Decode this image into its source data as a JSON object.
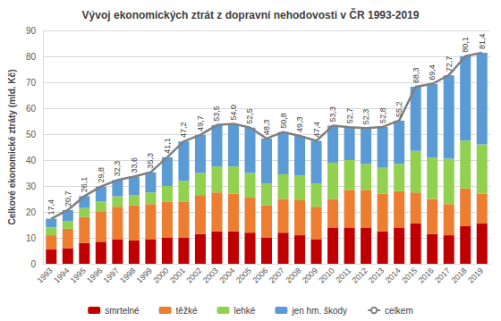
{
  "chart_data": {
    "type": "bar",
    "title": "Vývoj ekonomických ztrát z dopravní nehodovosti v ČR 1993-2019",
    "y_label": "Celkové ekonomické ztráty (mld. Kč)",
    "categories": [
      "1993",
      "1994",
      "1995",
      "1996",
      "1997",
      "1998",
      "1999",
      "2000",
      "2001",
      "2002",
      "2003",
      "2004",
      "2005",
      "2006",
      "2007",
      "2008",
      "2009",
      "2010",
      "2011",
      "2012",
      "2013",
      "2014",
      "2015",
      "2016",
      "2017",
      "2018",
      "2019"
    ],
    "stacked": true,
    "grid": true,
    "legend": "bottom",
    "ylim": [
      0,
      90
    ],
    "yticks": [
      0,
      10,
      20,
      30,
      40,
      50,
      60,
      70,
      80,
      90
    ],
    "series": [
      {
        "name": "smrtelné",
        "type": "bar",
        "color": "#c00000",
        "values": [
          5.5,
          6,
          8,
          8.5,
          9.5,
          9,
          9.5,
          10,
          10,
          11.5,
          12.5,
          12.5,
          12,
          10,
          12,
          11,
          9.5,
          14,
          14,
          14,
          12.5,
          14,
          15.5,
          11.5,
          11,
          14.5,
          15.5
        ]
      },
      {
        "name": "těžké",
        "type": "bar",
        "color": "#ed7d31",
        "values": [
          5.5,
          7.5,
          10,
          11.5,
          12.5,
          13.5,
          13.5,
          14,
          14,
          15,
          15,
          14.5,
          13.5,
          12.5,
          13,
          13.5,
          12.5,
          11,
          14.5,
          14.5,
          14.5,
          14,
          12,
          13.5,
          12,
          14.5,
          11.5
        ]
      },
      {
        "name": "lehké",
        "type": "bar",
        "color": "#92d050",
        "values": [
          3,
          3,
          3.5,
          4,
          4,
          4,
          4.5,
          6,
          8,
          8.5,
          10,
          10.5,
          9.5,
          8.5,
          9.5,
          9.5,
          9,
          14,
          11.5,
          10,
          10,
          10.5,
          16,
          16,
          17.5,
          18.5,
          19
        ]
      },
      {
        "name": "jen hm. škody",
        "type": "bar",
        "color": "#5b9bd5",
        "values": [
          3.4,
          4.2,
          4.6,
          5.8,
          6.3,
          7.1,
          7.8,
          11.1,
          15.2,
          14.7,
          16,
          16.5,
          17.5,
          17.3,
          16.3,
          15.3,
          16.4,
          14.3,
          12.7,
          13.8,
          15.8,
          16.7,
          24.8,
          28.4,
          32.2,
          32.6,
          35.4
        ]
      },
      {
        "name": "celkem",
        "type": "line",
        "color": "#7f7f7f",
        "data_labels": true,
        "values": [
          17.4,
          20.7,
          26.1,
          29.8,
          32.3,
          33.6,
          35.3,
          41.1,
          47.2,
          49.7,
          53.5,
          54.0,
          52.5,
          48.3,
          50.8,
          49.3,
          47.4,
          53.3,
          52.7,
          52.3,
          52.8,
          55.2,
          68.3,
          69.4,
          72.7,
          80.1,
          81.4
        ],
        "value_labels": [
          "17,4",
          "20,7",
          "26,1",
          "29,8",
          "32,3",
          "33,6",
          "35,3",
          "41,1",
          "47,2",
          "49,7",
          "53,5",
          "54,0",
          "52,5",
          "48,3",
          "50,8",
          "49,3",
          "47,4",
          "53,3",
          "52,7",
          "52,3",
          "52,8",
          "55,2",
          "68,3",
          "69,4",
          "72,7",
          "80,1",
          "81,4"
        ]
      }
    ]
  }
}
